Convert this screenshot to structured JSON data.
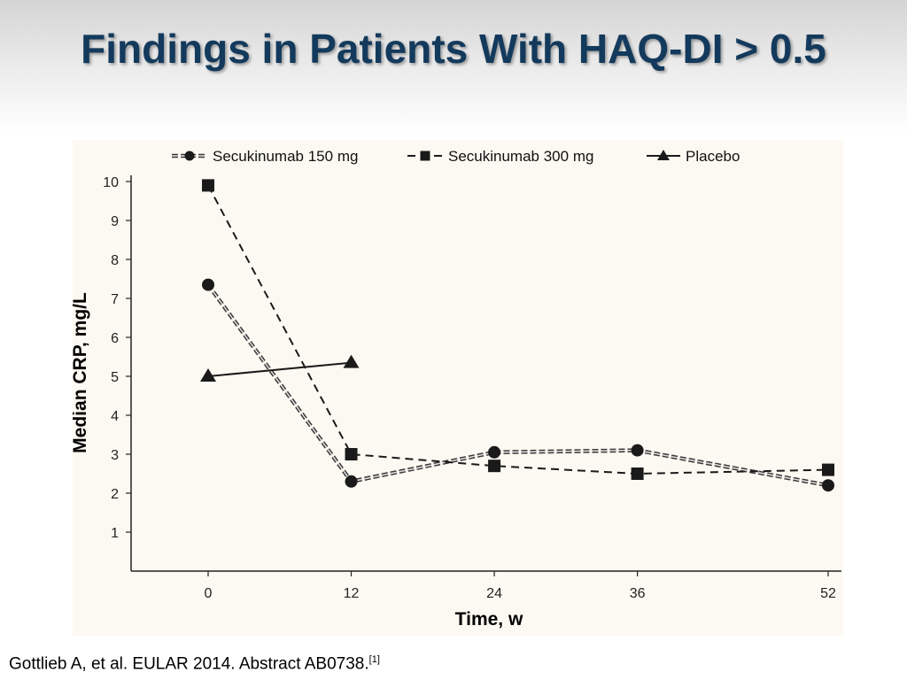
{
  "slide": {
    "title": "Findings in Patients With HAQ-DI > 0.5",
    "citation": "Gottlieb A, et al. EULAR 2014. Abstract AB0738.",
    "citation_ref": "[1]"
  },
  "chart_data": {
    "type": "line",
    "title": "",
    "xlabel": "Time, w",
    "ylabel": "Median CRP, mg/L",
    "x_ticks": [
      0,
      12,
      24,
      36,
      52
    ],
    "y_ticks": [
      1,
      2,
      3,
      4,
      5,
      6,
      7,
      8,
      9,
      10
    ],
    "ylim": [
      0,
      10
    ],
    "legend_position": "top",
    "grid": false,
    "series": [
      {
        "name": "Secukinumab 150 mg",
        "marker": "circle",
        "line_style": "double-dashed",
        "points": [
          [
            0,
            7.35
          ],
          [
            12,
            2.3
          ],
          [
            24,
            3.05
          ],
          [
            36,
            3.1
          ],
          [
            52,
            2.2
          ]
        ]
      },
      {
        "name": "Secukinumab 300 mg",
        "marker": "square",
        "line_style": "dashed",
        "points": [
          [
            0,
            9.9
          ],
          [
            12,
            3.0
          ],
          [
            24,
            2.7
          ],
          [
            36,
            2.5
          ],
          [
            52,
            2.6
          ]
        ]
      },
      {
        "name": "Placebo",
        "marker": "triangle",
        "line_style": "solid",
        "points": [
          [
            0,
            5.0
          ],
          [
            12,
            5.35
          ]
        ]
      }
    ]
  }
}
